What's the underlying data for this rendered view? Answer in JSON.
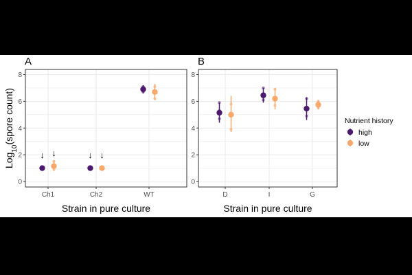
{
  "colors": {
    "high": "#4b1a6e",
    "low": "#f7a86b",
    "grid": "#ebebeb",
    "frame": "#333333",
    "text": "#000000",
    "tick": "#4d4d4d"
  },
  "ylabel_main": "Log",
  "ylabel_sub": "10",
  "ylabel_rest": "(spore count)",
  "legend": {
    "title": "Nutrient history",
    "items": [
      {
        "key": "high",
        "label": "high"
      },
      {
        "key": "low",
        "label": "low"
      }
    ]
  },
  "chart_data": [
    {
      "panel": "A",
      "type": "scatter",
      "xlabel": "Strain in pure culture",
      "categories": [
        "Ch1",
        "Ch2",
        "WT"
      ],
      "ylim": [
        0,
        8
      ],
      "yticks": [
        0,
        2,
        4,
        6,
        8
      ],
      "series": [
        {
          "name": "high",
          "means": [
            1.0,
            1.0,
            6.9
          ],
          "err_low": [
            1.0,
            1.0,
            6.6
          ],
          "err_high": [
            1.0,
            1.0,
            7.2
          ],
          "replicates": [
            [
              1.0,
              1.0,
              1.0
            ],
            [
              1.0,
              1.0,
              1.0
            ],
            [
              6.7,
              7.0,
              7.1
            ]
          ]
        },
        {
          "name": "low",
          "means": [
            1.15,
            1.0,
            6.7
          ],
          "err_low": [
            0.8,
            1.0,
            6.1
          ],
          "err_high": [
            1.6,
            1.0,
            7.3
          ],
          "replicates": [
            [
              0.9,
              1.2,
              1.5
            ],
            [
              1.0,
              1.0,
              1.0
            ],
            [
              6.2,
              6.8,
              7.1
            ]
          ]
        }
      ],
      "arrow_glyph": "↓",
      "annotations": [
        {
          "category": "Ch1",
          "series": "high",
          "y": 2.0
        },
        {
          "category": "Ch1",
          "series": "low",
          "y": 2.15
        },
        {
          "category": "Ch2",
          "series": "high",
          "y": 2.0
        },
        {
          "category": "Ch2",
          "series": "low",
          "y": 2.0
        }
      ]
    },
    {
      "panel": "B",
      "type": "scatter",
      "xlabel": "Strain in pure culture",
      "categories": [
        "D",
        "I",
        "G"
      ],
      "ylim": [
        0,
        8
      ],
      "yticks": [
        0,
        2,
        4,
        6,
        8
      ],
      "series": [
        {
          "name": "high",
          "means": [
            5.15,
            6.45,
            5.45
          ],
          "err_low": [
            4.4,
            5.9,
            4.6
          ],
          "err_high": [
            5.9,
            7.0,
            6.3
          ],
          "replicates": [
            [
              4.7,
              5.3,
              5.9
            ],
            [
              6.1,
              6.5,
              7.0
            ],
            [
              4.9,
              5.4,
              6.2
            ]
          ]
        },
        {
          "name": "low",
          "means": [
            5.0,
            6.2,
            5.75
          ],
          "err_low": [
            3.7,
            5.4,
            5.4
          ],
          "err_high": [
            6.4,
            7.0,
            6.1
          ],
          "replicates": [
            [
              3.9,
              5.1,
              5.8
            ],
            [
              5.7,
              6.3,
              6.9
            ],
            [
              5.5,
              5.8,
              6.0
            ]
          ]
        }
      ]
    }
  ]
}
